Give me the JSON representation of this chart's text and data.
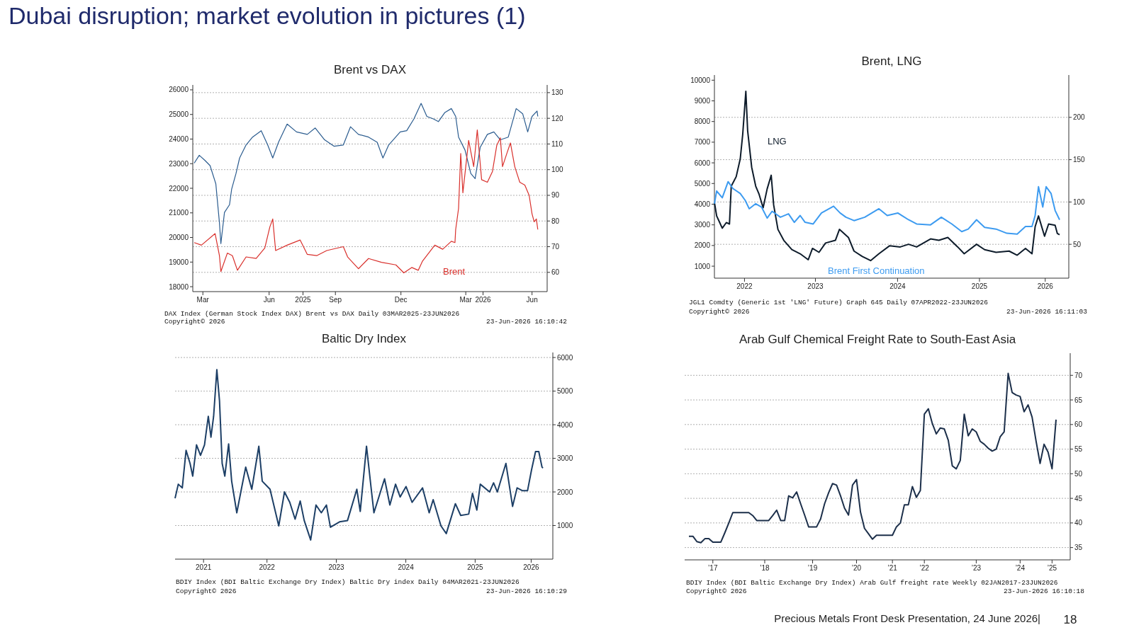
{
  "chart_data": [
    {
      "type": "other",
      "title": "Dubai disruption; market evolution in pictures (1)",
      "annotations": [
        "Precious Metals Front Desk Presentation, 24 June 2026|",
        "18"
      ]
    },
    {
      "type": "line",
      "title": "Brent vs DAX",
      "xlim": [
        "2025-03-01",
        "2026-07-06"
      ],
      "xticks": [
        {
          "value": "2025-03-15",
          "label": "Mar"
        },
        {
          "value": "2025-06-15",
          "label": "Jun"
        },
        {
          "value": "2025-08-01",
          "label": "2025"
        },
        {
          "value": "2025-09-15",
          "label": "Sep"
        },
        {
          "value": "2025-12-15",
          "label": "Dec"
        },
        {
          "value": "2026-03-15",
          "label": "Mar"
        },
        {
          "value": "2026-04-08",
          "label": "2026"
        },
        {
          "value": "2026-06-15",
          "label": "Jun"
        }
      ],
      "ylim": [
        17800,
        26200
      ],
      "yticks": [
        18000,
        19000,
        20000,
        21000,
        22000,
        23000,
        24000,
        25000,
        26000
      ],
      "y2lim": [
        52.5,
        133
      ],
      "y2ticks": [
        60,
        70,
        80,
        90,
        100,
        110,
        120,
        130
      ],
      "grid": "y2",
      "series": [
        {
          "color": "#2b5c8f",
          "x": [
            "2025-03-03",
            "2025-03-10",
            "2025-03-18",
            "2025-03-25",
            "2025-04-02",
            "2025-04-07",
            "2025-04-09",
            "2025-04-14",
            "2025-04-21",
            "2025-04-24",
            "2025-04-30",
            "2025-05-05",
            "2025-05-14",
            "2025-05-23",
            "2025-06-04",
            "2025-06-13",
            "2025-06-20",
            "2025-06-28",
            "2025-07-10",
            "2025-07-23",
            "2025-08-07",
            "2025-08-18",
            "2025-08-31",
            "2025-09-13",
            "2025-09-26",
            "2025-10-06",
            "2025-10-17",
            "2025-10-31",
            "2025-11-12",
            "2025-11-20",
            "2025-11-28",
            "2025-12-14",
            "2025-12-23",
            "2026-01-02",
            "2026-01-12",
            "2026-01-20",
            "2026-01-29",
            "2026-02-05",
            "2026-02-14",
            "2026-02-23",
            "2026-03-01",
            "2026-03-05",
            "2026-03-14",
            "2026-03-22",
            "2026-03-28",
            "2026-04-04",
            "2026-04-14",
            "2026-04-23",
            "2026-05-02",
            "2026-05-13",
            "2026-05-24",
            "2026-06-02",
            "2026-06-09",
            "2026-06-15",
            "2026-06-22",
            "2026-06-23"
          ],
          "values": [
            23020,
            23340,
            23130,
            22920,
            22180,
            20600,
            19750,
            21020,
            21330,
            21970,
            22600,
            23230,
            23760,
            24080,
            24340,
            23760,
            23230,
            23870,
            24610,
            24290,
            24190,
            24450,
            23970,
            23710,
            23760,
            24500,
            24190,
            24080,
            23870,
            23230,
            23760,
            24290,
            24340,
            24820,
            25450,
            24920,
            24820,
            24710,
            25080,
            25240,
            24920,
            24080,
            23550,
            22600,
            22390,
            23660,
            24190,
            24290,
            23970,
            24080,
            25240,
            25030,
            24290,
            24920,
            25140,
            24920
          ]
        },
        {
          "name": "Brent",
          "axis": "y2",
          "color": "#d9302c",
          "x": [
            "2025-03-03",
            "2025-03-13",
            "2025-04-01",
            "2025-04-07",
            "2025-04-09",
            "2025-04-18",
            "2025-04-25",
            "2025-05-02",
            "2025-05-14",
            "2025-05-28",
            "2025-06-09",
            "2025-06-16",
            "2025-06-20",
            "2025-06-24",
            "2025-07-10",
            "2025-07-28",
            "2025-08-07",
            "2025-08-20",
            "2025-09-03",
            "2025-09-26",
            "2025-10-02",
            "2025-10-17",
            "2025-10-31",
            "2025-11-18",
            "2025-12-08",
            "2025-12-19",
            "2025-12-30",
            "2026-01-08",
            "2026-01-14",
            "2026-01-31",
            "2026-02-11",
            "2026-02-23",
            "2026-02-28",
            "2026-03-01",
            "2026-03-05",
            "2026-03-08",
            "2026-03-11",
            "2026-03-19",
            "2026-03-26",
            "2026-03-31",
            "2026-04-06",
            "2026-04-14",
            "2026-04-21",
            "2026-04-27",
            "2026-05-02",
            "2026-05-05",
            "2026-05-11",
            "2026-05-16",
            "2026-05-22",
            "2026-05-29",
            "2026-06-05",
            "2026-06-11",
            "2026-06-15",
            "2026-06-18",
            "2026-06-21",
            "2026-06-23"
          ],
          "values": [
            71.6,
            70.6,
            75.1,
            66.5,
            60.3,
            67.5,
            66.5,
            60.8,
            66.0,
            65.4,
            69.5,
            77.7,
            80.8,
            68.5,
            70.6,
            72.6,
            67.0,
            66.5,
            68.5,
            70.0,
            66.0,
            61.4,
            65.4,
            63.9,
            62.9,
            59.8,
            61.9,
            60.8,
            64.4,
            70.6,
            69.0,
            72.1,
            71.6,
            76.7,
            84.9,
            106.3,
            91.0,
            111.4,
            101.2,
            115.5,
            96.1,
            95.1,
            99.2,
            109.4,
            112.4,
            101.2,
            106.3,
            110.4,
            101.2,
            95.1,
            94.0,
            90.0,
            82.8,
            79.7,
            80.8,
            76.7
          ]
        }
      ],
      "annotations": [
        "DAX Index (German Stock Index DAX) Brent vs DAX Daily 03MAR2025-23JUN2026",
        "Copyright© 2026",
        "23-Jun-2026 16:10:42"
      ]
    },
    {
      "type": "line",
      "title": "Brent, LNG",
      "xlim": [
        "2022-04-07",
        "2026-08-03"
      ],
      "xticks": [
        {
          "value": "2022-08-19",
          "label": "2022"
        },
        {
          "value": "2023-07-01",
          "label": "2023"
        },
        {
          "value": "2024-07-01",
          "label": "2024"
        },
        {
          "value": "2025-07-01",
          "label": "2025"
        },
        {
          "value": "2026-04-20",
          "label": "2026"
        }
      ],
      "ylim": [
        420,
        10250
      ],
      "yticks": [
        1000,
        2000,
        3000,
        4000,
        5000,
        6000,
        7000,
        8000,
        9000,
        10000
      ],
      "y2lim": [
        10,
        250
      ],
      "y2ticks": [
        50,
        100,
        150,
        200
      ],
      "grid": "y2",
      "series": [
        {
          "name": "LNG",
          "color": "#0d1b2a",
          "x": [
            "2022-04-07",
            "2022-04-17",
            "2022-05-12",
            "2022-05-30",
            "2022-06-13",
            "2022-06-21",
            "2022-07-13",
            "2022-07-31",
            "2022-08-11",
            "2022-08-25",
            "2022-09-02",
            "2022-09-20",
            "2022-10-08",
            "2022-10-23",
            "2022-11-10",
            "2022-11-28",
            "2022-12-16",
            "2022-12-27",
            "2023-01-15",
            "2023-02-10",
            "2023-03-18",
            "2023-04-24",
            "2023-05-30",
            "2023-06-18",
            "2023-07-17",
            "2023-08-15",
            "2023-09-28",
            "2023-10-16",
            "2023-11-25",
            "2023-12-20",
            "2024-01-26",
            "2024-03-03",
            "2024-04-09",
            "2024-05-27",
            "2024-07-13",
            "2024-08-19",
            "2024-09-24",
            "2024-11-25",
            "2025-01-01",
            "2025-02-10",
            "2025-03-26",
            "2025-04-24",
            "2025-06-18",
            "2025-07-24",
            "2025-09-13",
            "2025-11-10",
            "2025-12-16",
            "2026-01-22",
            "2026-02-20",
            "2026-03-06",
            "2026-03-21",
            "2026-04-17",
            "2026-05-05",
            "2026-06-03",
            "2026-06-13",
            "2026-06-23"
          ],
          "values": [
            4090,
            3430,
            2840,
            3110,
            3040,
            4870,
            5330,
            6190,
            7370,
            9460,
            7560,
            5790,
            4870,
            4480,
            3830,
            4740,
            5400,
            3960,
            2780,
            2250,
            1800,
            1600,
            1310,
            1860,
            1670,
            2120,
            2250,
            2780,
            2390,
            1730,
            1470,
            1270,
            1600,
            1990,
            1930,
            2060,
            1930,
            2320,
            2250,
            2390,
            1930,
            1600,
            2060,
            1800,
            1670,
            1730,
            1530,
            1860,
            1600,
            2910,
            3430,
            2450,
            3040,
            2980,
            2580,
            2520
          ]
        },
        {
          "name": "Brent First Continuation",
          "axis": "y2",
          "color": "#3d9bf0",
          "x": [
            "2022-04-07",
            "2022-04-17",
            "2022-05-12",
            "2022-06-07",
            "2022-06-28",
            "2022-07-31",
            "2022-08-22",
            "2022-09-09",
            "2022-10-08",
            "2022-11-03",
            "2022-11-28",
            "2022-12-20",
            "2023-01-26",
            "2023-03-03",
            "2023-03-29",
            "2023-04-24",
            "2023-05-16",
            "2023-06-21",
            "2023-07-28",
            "2023-09-20",
            "2023-10-19",
            "2023-11-14",
            "2023-12-20",
            "2024-02-06",
            "2024-04-09",
            "2024-05-16",
            "2024-07-02",
            "2024-08-19",
            "2024-09-24",
            "2024-11-25",
            "2025-01-12",
            "2025-02-28",
            "2025-04-13",
            "2025-05-12",
            "2025-06-18",
            "2025-07-24",
            "2025-09-13",
            "2025-10-31",
            "2025-12-16",
            "2026-01-22",
            "2026-02-20",
            "2026-03-06",
            "2026-03-21",
            "2026-04-09",
            "2026-04-24",
            "2026-05-16",
            "2026-06-03",
            "2026-06-23"
          ],
          "values": [
            98,
            113,
            105,
            124,
            116,
            110,
            102,
            92,
            98,
            94,
            81,
            89,
            82,
            86,
            76,
            84,
            76,
            74,
            87,
            95,
            87,
            82,
            78,
            82,
            92,
            84,
            87,
            79,
            74,
            73,
            82,
            74,
            65,
            68,
            79,
            70,
            68,
            63,
            62,
            71,
            71,
            84,
            118,
            94,
            118,
            110,
            90,
            79
          ]
        }
      ],
      "annotations": [
        "JGL1 Comdty (Generic 1st 'LNG' Future) Graph 645 Daily 07APR2022-23JUN2026",
        "Copyright© 2026",
        "23-Jun-2026 16:11:03"
      ]
    },
    {
      "type": "line",
      "title": "Baltic Dry Index",
      "xlim": [
        "2021-03-04",
        "2026-08-14"
      ],
      "xticks": [
        {
          "value": "2021-08-01",
          "label": "2021"
        },
        {
          "value": "2022-07-01",
          "label": "2022"
        },
        {
          "value": "2023-07-01",
          "label": "2023"
        },
        {
          "value": "2024-07-01",
          "label": "2024"
        },
        {
          "value": "2025-07-01",
          "label": "2025"
        },
        {
          "value": "2026-04-22",
          "label": "2026"
        }
      ],
      "ylim": [
        0,
        6150
      ],
      "yticks": [
        1000,
        2000,
        3000,
        4000,
        5000,
        6000
      ],
      "grid": "y",
      "series": [
        {
          "color": "#1d3f66",
          "x": [
            "2021-03-04",
            "2021-03-21",
            "2021-04-11",
            "2021-05-01",
            "2021-05-22",
            "2021-06-05",
            "2021-06-25",
            "2021-07-16",
            "2021-08-06",
            "2021-08-26",
            "2021-09-09",
            "2021-09-23",
            "2021-10-10",
            "2021-10-24",
            "2021-11-07",
            "2021-11-21",
            "2021-12-11",
            "2021-12-27",
            "2022-01-23",
            "2022-02-16",
            "2022-03-11",
            "2022-04-12",
            "2022-05-19",
            "2022-06-06",
            "2022-07-17",
            "2022-09-01",
            "2022-10-01",
            "2022-10-29",
            "2022-11-26",
            "2022-12-23",
            "2023-01-13",
            "2023-02-16",
            "2023-03-16",
            "2023-04-13",
            "2023-05-10",
            "2023-05-31",
            "2023-07-18",
            "2023-08-29",
            "2023-10-17",
            "2023-11-04",
            "2023-12-07",
            "2024-01-01",
            "2024-01-15",
            "2024-03-11",
            "2024-04-08",
            "2024-05-08",
            "2024-06-01",
            "2024-07-02",
            "2024-08-03",
            "2024-09-27",
            "2024-11-01",
            "2024-11-22",
            "2025-01-02",
            "2025-01-30",
            "2025-03-19",
            "2025-04-16",
            "2025-05-28",
            "2025-06-17",
            "2025-07-10",
            "2025-07-28",
            "2025-09-15",
            "2025-10-06",
            "2025-10-26",
            "2025-12-10",
            "2026-01-14",
            "2026-02-07",
            "2026-03-06",
            "2026-04-03",
            "2026-04-24",
            "2026-05-15",
            "2026-06-01",
            "2026-06-18",
            "2026-06-23"
          ],
          "values": [
            1810,
            2230,
            2120,
            3240,
            2850,
            2470,
            3400,
            3090,
            3400,
            4250,
            3630,
            4250,
            5640,
            4710,
            2850,
            2470,
            3430,
            2320,
            1380,
            2080,
            2740,
            2080,
            3360,
            2320,
            2080,
            990,
            2000,
            1690,
            1190,
            1730,
            1150,
            570,
            1610,
            1380,
            1610,
            950,
            1110,
            1150,
            2080,
            1420,
            3360,
            2080,
            1380,
            2390,
            1610,
            2230,
            1850,
            2160,
            1690,
            2120,
            1380,
            1770,
            990,
            760,
            1650,
            1300,
            1340,
            1960,
            1460,
            2230,
            2000,
            2270,
            2000,
            2850,
            1570,
            2120,
            2040,
            2040,
            2660,
            3200,
            3200,
            2740,
            2710
          ]
        }
      ],
      "annotations": [
        "BDIY Index (BDI Baltic Exchange Dry Index) Baltic Dry index Daily 04MAR2021-23JUN2026",
        "Copyright© 2026",
        "23-Jun-2026 16:10:29"
      ]
    },
    {
      "type": "line",
      "title": "Arab Gulf Chemical Freight Rate to South-East Asia",
      "categories": [
        null,
        null,
        null,
        null,
        null,
        null,
        "’17",
        null,
        null,
        null,
        null,
        null,
        null,
        null,
        null,
        null,
        null,
        null,
        null,
        "’18",
        null,
        null,
        null,
        null,
        null,
        null,
        null,
        null,
        null,
        null,
        null,
        "’19",
        null,
        null,
        null,
        null,
        null,
        null,
        null,
        null,
        null,
        null,
        "’20",
        null,
        null,
        null,
        null,
        null,
        null,
        null,
        null,
        "’21",
        null,
        null,
        null,
        null,
        null,
        null,
        null,
        "’22",
        null,
        null,
        null,
        null,
        null,
        null,
        null,
        null,
        null,
        null,
        null,
        null,
        "’23",
        null,
        null,
        null,
        null,
        null,
        null,
        null,
        null,
        null,
        null,
        "’24",
        null,
        null,
        null,
        null,
        null,
        null,
        null,
        "’25",
        null
      ],
      "ylim": [
        32.5,
        74.5
      ],
      "yticks": [
        35,
        40,
        45,
        50,
        55,
        60,
        65,
        70
      ],
      "grid": "y",
      "series": [
        {
          "color": "#1c2f4a",
          "values": [
            37.3,
            37.3,
            36.2,
            36.0,
            36.8,
            36.8,
            36.1,
            36.1,
            36.1,
            38.0,
            40.0,
            42.1,
            42.1,
            42.1,
            42.1,
            42.1,
            41.5,
            40.5,
            40.5,
            40.5,
            40.5,
            41.5,
            42.6,
            40.5,
            40.5,
            45.5,
            45.1,
            46.3,
            43.9,
            41.6,
            39.2,
            39.2,
            39.2,
            40.8,
            43.9,
            46.1,
            48.0,
            47.7,
            45.5,
            43.0,
            41.6,
            47.7,
            48.8,
            42.2,
            38.9,
            37.8,
            36.7,
            37.5,
            37.5,
            37.5,
            37.5,
            37.5,
            39.2,
            40.0,
            43.7,
            43.7,
            47.4,
            45.2,
            46.6,
            62.1,
            63.2,
            60.2,
            58.1,
            59.3,
            59.1,
            56.8,
            51.6,
            51.0,
            52.7,
            62.1,
            57.7,
            59.1,
            58.5,
            56.6,
            56.0,
            55.2,
            54.6,
            55.0,
            57.5,
            58.5,
            70.4,
            66.5,
            66.0,
            65.7,
            62.6,
            64.0,
            61.5,
            56.6,
            52.1,
            56.0,
            54.4,
            51.0,
            61.0
          ]
        }
      ],
      "annotations": [
        "BDIY Index (BDI Baltic Exchange Dry Index) Arab Gulf freight rate Weekly 02JAN2017-23JUN2026",
        "Copyright© 2026",
        "23-Jun-2026 16:10:18"
      ]
    }
  ]
}
